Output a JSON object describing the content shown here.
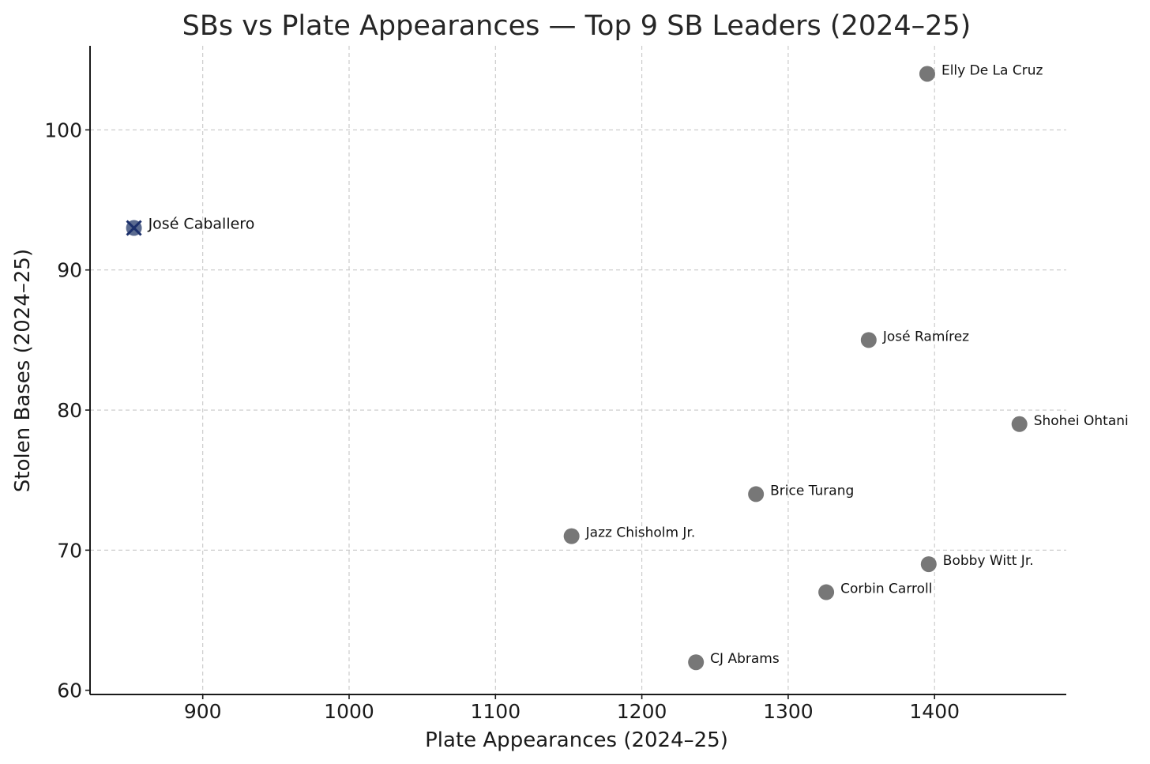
{
  "chart_data": {
    "type": "scatter",
    "title": "SBs vs Plate Appearances — Top 9 SB Leaders (2024–25)",
    "xlabel": "Plate Appearances (2024–25)",
    "ylabel": "Stolen Bases (2024–25)",
    "xlim": [
      823,
      1490
    ],
    "ylim": [
      59.7,
      106
    ],
    "xticks": [
      900,
      1000,
      1100,
      1200,
      1300,
      1400
    ],
    "yticks": [
      60,
      70,
      80,
      90,
      100
    ],
    "grid": true,
    "colors": {
      "point": "#777777",
      "highlight": "#1b2f6b",
      "grid": "#c8c8c8"
    },
    "points": [
      {
        "name": "Elly De La Cruz",
        "pa": 1395,
        "sb": 104,
        "highlight": false
      },
      {
        "name": "José Caballero",
        "pa": 853,
        "sb": 93,
        "highlight": true
      },
      {
        "name": "José Ramírez",
        "pa": 1355,
        "sb": 85,
        "highlight": false
      },
      {
        "name": "Shohei Ohtani",
        "pa": 1458,
        "sb": 79,
        "highlight": false
      },
      {
        "name": "Brice Turang",
        "pa": 1278,
        "sb": 74,
        "highlight": false
      },
      {
        "name": "Jazz Chisholm Jr.",
        "pa": 1152,
        "sb": 71,
        "highlight": false
      },
      {
        "name": "Bobby Witt Jr.",
        "pa": 1396,
        "sb": 69,
        "highlight": false
      },
      {
        "name": "Corbin Carroll",
        "pa": 1326,
        "sb": 67,
        "highlight": false
      },
      {
        "name": "CJ Abrams",
        "pa": 1237,
        "sb": 62,
        "highlight": false
      }
    ]
  }
}
